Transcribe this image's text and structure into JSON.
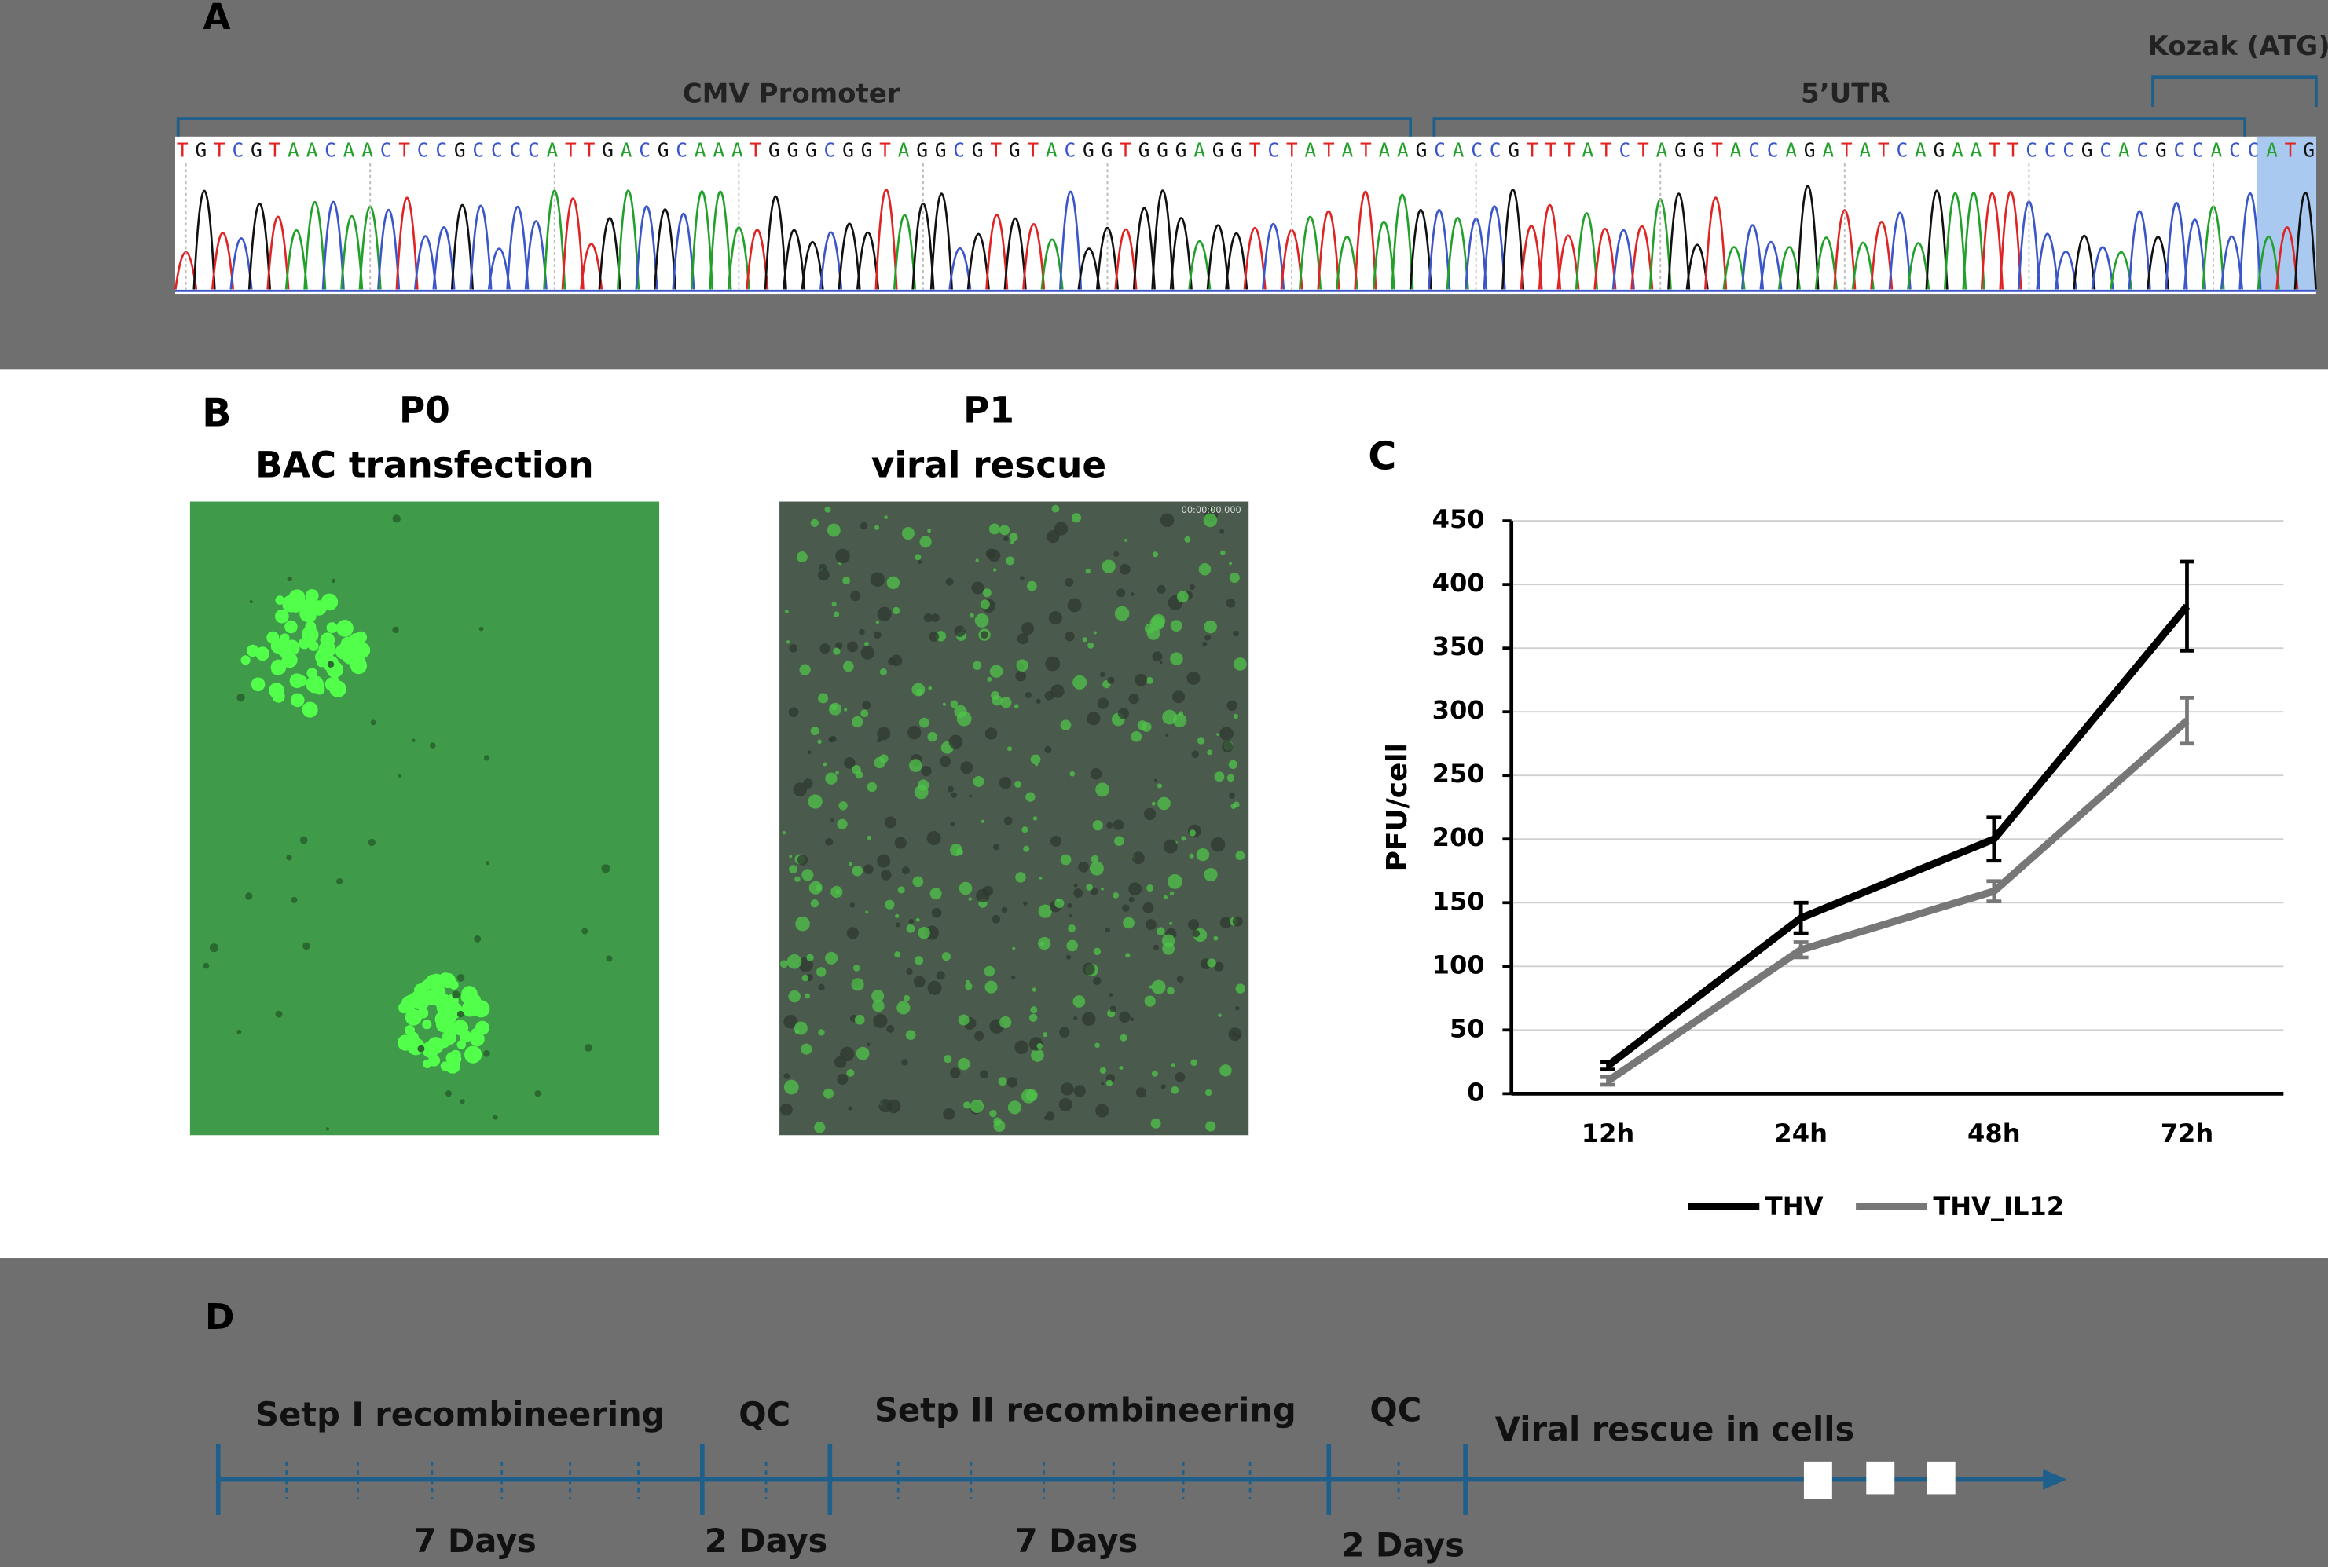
{
  "panels": {
    "a": {
      "label": "A",
      "regions": [
        {
          "label": "CMV Promoter"
        },
        {
          "label": "5’UTR"
        },
        {
          "label": "Kozak (ATG)"
        }
      ],
      "sequence": "TGTCGTAACAACTCCGCCCCATTGACGCAAATGGGCGGTAGGCGTGTACGGTGGGAGGTCTATATAAGCACCGTTTATCTAGGTACCAGATATCAGAATTCCCGCACGCCACCATG",
      "base_colors": {
        "A": "#22a12a",
        "C": "#3b56c9",
        "G": "#111111",
        "T": "#e02424"
      }
    },
    "b": {
      "label": "B",
      "images": [
        {
          "title": "P0",
          "subtitle": "BAC transfection"
        },
        {
          "title": "P1",
          "subtitle": "viral rescue",
          "timestamp": "00:00:00.000"
        }
      ]
    },
    "c": {
      "label": "C"
    },
    "d": {
      "label": "D",
      "stages": [
        {
          "name": "Setp I recombineering",
          "duration": "7 Days"
        },
        {
          "name": "QC",
          "duration": "2 Days"
        },
        {
          "name": "Setp II recombineering",
          "duration": "7 Days"
        },
        {
          "name": "QC",
          "duration": "2 Days"
        },
        {
          "name": "Viral rescue in cells"
        }
      ]
    }
  },
  "chart_data": {
    "type": "line",
    "y_label": "PFU/cell",
    "categories": [
      "12h",
      "24h",
      "48h",
      "72h"
    ],
    "series": [
      {
        "name": "THV",
        "color": "#000000",
        "values": [
          22,
          138,
          200,
          383
        ],
        "error": [
          3,
          12,
          17,
          35
        ]
      },
      {
        "name": "THV_IL12",
        "color": "#777777",
        "values": [
          10,
          113,
          159,
          293
        ],
        "error": [
          3,
          6,
          8,
          18
        ]
      }
    ],
    "ylim": [
      0,
      450
    ],
    "yticks": [
      0,
      50,
      100,
      150,
      200,
      250,
      300,
      350,
      400,
      450
    ],
    "grid": true,
    "legend": "bottom"
  }
}
